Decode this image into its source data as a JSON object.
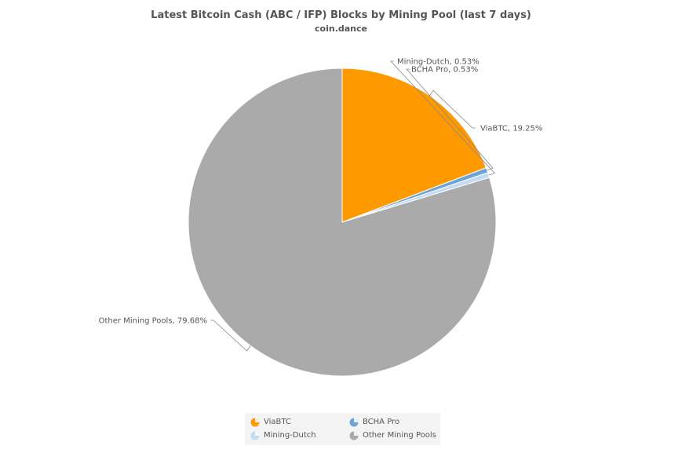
{
  "header": {
    "title": "Latest Bitcoin Cash (ABC / IFP) Blocks by Mining Pool (last 7 days)",
    "subtitle": "coin.dance"
  },
  "chart_data": {
    "type": "pie",
    "title": "Latest Bitcoin Cash (ABC / IFP) Blocks by Mining Pool (last 7 days)",
    "subtitle": "coin.dance",
    "slices": [
      {
        "name": "ViaBTC",
        "value": 19.25,
        "label": "ViaBTC, 19.25%",
        "color": "#ff9900"
      },
      {
        "name": "BCHA Pro",
        "value": 0.53,
        "label": "BCHA Pro, 0.53%",
        "color": "#6fa3d6"
      },
      {
        "name": "Mining-Dutch",
        "value": 0.53,
        "label": "Mining-Dutch, 0.53%",
        "color": "#c2dbf5"
      },
      {
        "name": "Other Mining Pools",
        "value": 79.68,
        "label": "Other Mining Pools, 79.68%",
        "color": "#aaaaaa"
      }
    ],
    "legend": {
      "placement": "bottom",
      "items": [
        "ViaBTC",
        "BCHA Pro",
        "Mining-Dutch",
        "Other Mining Pools"
      ]
    }
  }
}
